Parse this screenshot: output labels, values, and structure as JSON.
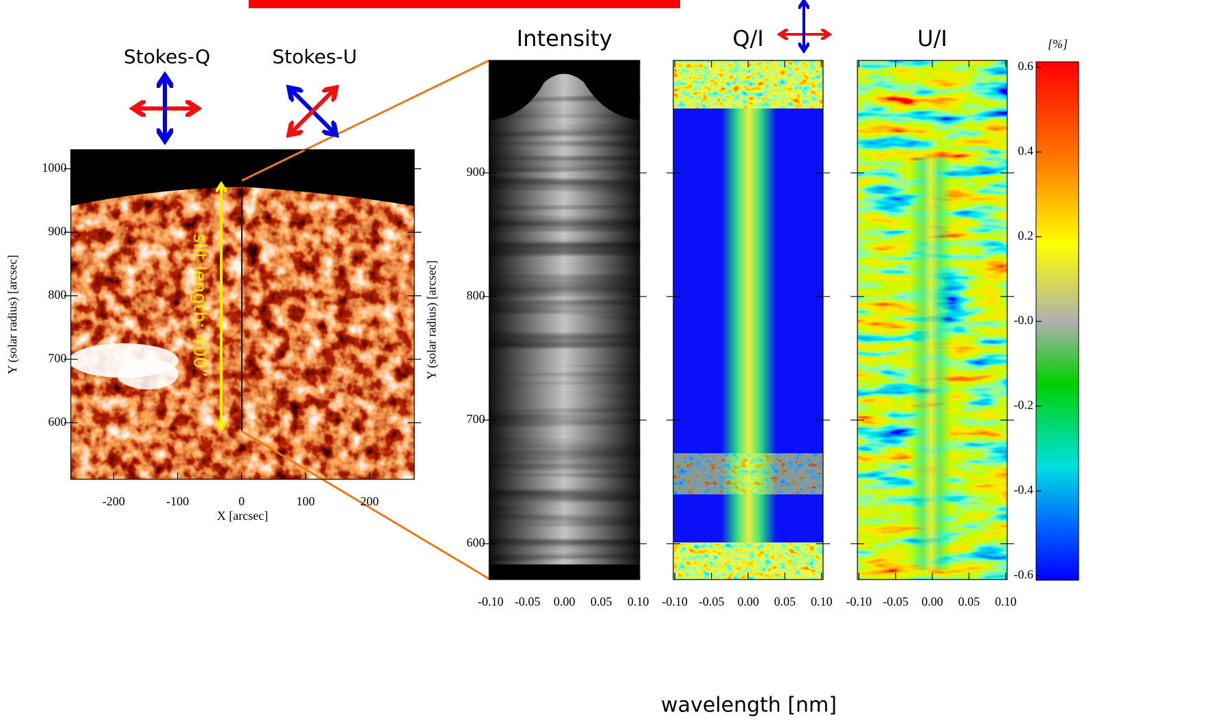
{
  "chart_data": [
    {
      "type": "image",
      "annotations": [
        "Stokes-Q",
        "Stokes-U",
        "slit length: 400”"
      ],
      "xlabel": "X [arcsec]",
      "ylabel": "Y (solar radius) [arcsec]",
      "xlim": [
        -267,
        270
      ],
      "ylim": [
        511,
        1030
      ],
      "xticks": [
        -200,
        -100,
        0,
        100,
        200
      ],
      "yticks": [
        600,
        700,
        800,
        900,
        1000
      ]
    },
    {
      "type": "image",
      "title": "Intensity",
      "ylabel": "Y (solar radius) [arcsec]",
      "xlim": [
        -0.102,
        0.102
      ],
      "ylim": [
        571,
        991
      ],
      "xticks": [
        {
          "value": -0.1,
          "label": "-0.10"
        },
        {
          "value": -0.05,
          "label": "-0.05"
        },
        {
          "value": 0,
          "label": "0.00"
        },
        {
          "value": 0.05,
          "label": "0.05"
        },
        {
          "value": 0.1,
          "label": "0.10"
        }
      ],
      "yticks": [
        600,
        700,
        800,
        900
      ]
    },
    {
      "type": "image",
      "title": "Q/I",
      "xlabel": "wavelength [nm]",
      "xlim": [
        -0.102,
        0.102
      ],
      "ylim": [
        571,
        991
      ],
      "xticks": [
        {
          "value": -0.1,
          "label": "-0.10"
        },
        {
          "value": -0.05,
          "label": "-0.05"
        },
        {
          "value": 0,
          "label": "0.00"
        },
        {
          "value": 0.05,
          "label": "0.05"
        },
        {
          "value": 0.1,
          "label": "0.10"
        }
      ]
    },
    {
      "type": "image",
      "title": "U/I",
      "xlim": [
        -0.102,
        0.102
      ],
      "ylim": [
        571,
        991
      ],
      "xticks": [
        {
          "value": -0.1,
          "label": "-0.10"
        },
        {
          "value": -0.05,
          "label": "-0.05"
        },
        {
          "value": 0,
          "label": "0.00"
        },
        {
          "value": 0.05,
          "label": "0.05"
        },
        {
          "value": 0.1,
          "label": "0.10"
        }
      ]
    },
    {
      "type": "colorbar",
      "title": "[%]",
      "ylim": [
        -0.611,
        0.613
      ],
      "yticks": [
        0.6,
        0.4,
        0.2,
        {
          "value": 0,
          "label": "-0.0"
        },
        -0.2,
        -0.4,
        -0.6
      ]
    }
  ]
}
